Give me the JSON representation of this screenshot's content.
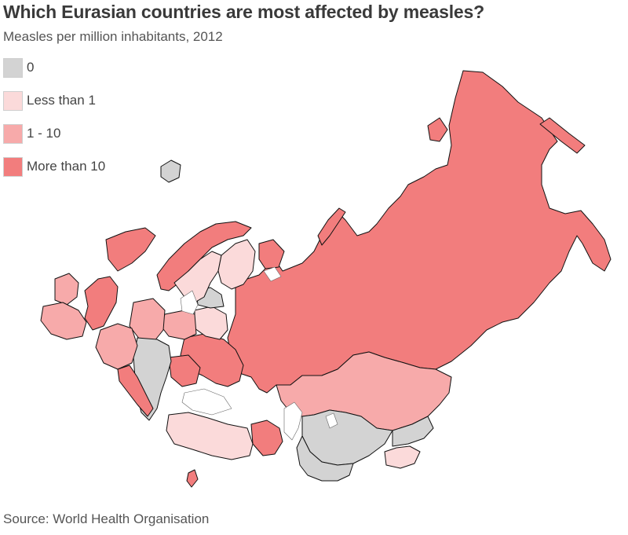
{
  "title": "Which Eurasian countries are most affected by measles?",
  "subtitle": "Measles per million inhabitants, 2012",
  "legend": [
    {
      "label": "0",
      "color": "#d3d3d3"
    },
    {
      "label": "Less than 1",
      "color": "#fbdada"
    },
    {
      "label": "1 - 10",
      "color": "#f7aaaa"
    },
    {
      "label": "More than 10",
      "color": "#f27d7d"
    }
  ],
  "source": "Source: World Health Organisation",
  "map": {
    "regions": [
      {
        "name": "russia",
        "category": "More than 10"
      },
      {
        "name": "ukraine",
        "category": "More than 10"
      },
      {
        "name": "norway",
        "category": "More than 10"
      },
      {
        "name": "uk",
        "category": "More than 10"
      },
      {
        "name": "italy",
        "category": "More than 10"
      },
      {
        "name": "georgia",
        "category": "More than 10"
      },
      {
        "name": "romania",
        "category": "More than 10"
      },
      {
        "name": "kazakhstan",
        "category": "1 - 10"
      },
      {
        "name": "ireland",
        "category": "1 - 10"
      },
      {
        "name": "spain",
        "category": "1 - 10"
      },
      {
        "name": "france",
        "category": "1 - 10"
      },
      {
        "name": "germany",
        "category": "1 - 10"
      },
      {
        "name": "poland",
        "category": "1 - 10"
      },
      {
        "name": "belarus",
        "category": "Less than 1"
      },
      {
        "name": "kyrgyzstan",
        "category": "Less than 1"
      },
      {
        "name": "sweden",
        "category": "Less than 1"
      },
      {
        "name": "finland",
        "category": "Less than 1"
      },
      {
        "name": "turkey",
        "category": "Less than 1"
      },
      {
        "name": "uzbekistan",
        "category": "0"
      },
      {
        "name": "turkmenistan",
        "category": "0"
      },
      {
        "name": "balkans",
        "category": "0"
      },
      {
        "name": "iceland",
        "category": "0"
      }
    ]
  }
}
